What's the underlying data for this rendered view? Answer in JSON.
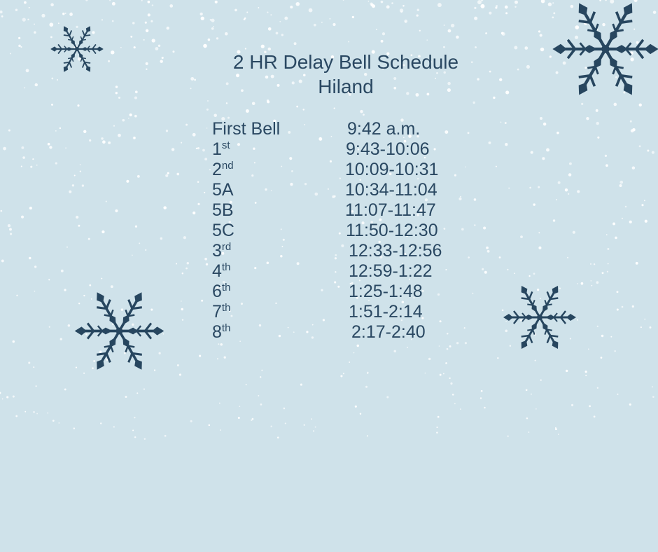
{
  "title": "2 HR Delay Bell Schedule",
  "subtitle": "Hiland",
  "colors": {
    "background": "#cfe2ea",
    "text": "#2a4862",
    "snowflake": "#27465f",
    "snow": "#ffffff"
  },
  "schedule": [
    {
      "label": "First Bell",
      "suffix": "",
      "time": "9:42 a.m."
    },
    {
      "label": "1",
      "suffix": "st",
      "time": "9:43-10:06"
    },
    {
      "label": "2",
      "suffix": "nd",
      "time": "10:09-10:31"
    },
    {
      "label": "5A",
      "suffix": "",
      "time": "10:34-11:04"
    },
    {
      "label": "5B",
      "suffix": "",
      "time": "11:07-11:47"
    },
    {
      "label": "5C",
      "suffix": "",
      "time": "11:50-12:30"
    },
    {
      "label": "3",
      "suffix": "rd",
      "time": "12:33-12:56"
    },
    {
      "label": "4",
      "suffix": "th",
      "time": "12:59-1:22"
    },
    {
      "label": "6",
      "suffix": "th",
      "time": "1:25-1:48"
    },
    {
      "label": "7",
      "suffix": "th",
      "time": "1:51-2:14"
    },
    {
      "label": "8",
      "suffix": "th",
      "time": "2:17-2:40"
    }
  ],
  "decorations": {
    "icons": [
      "snowflake-icon",
      "snow-dots"
    ]
  }
}
